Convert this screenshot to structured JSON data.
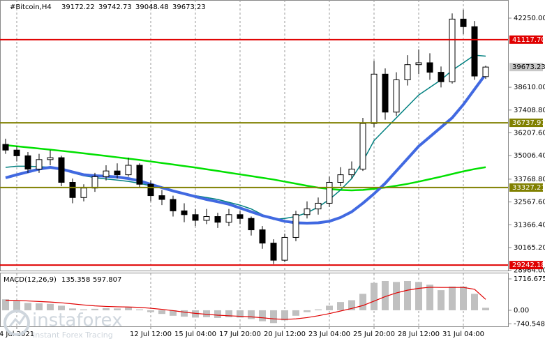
{
  "chart_data": {
    "type": "candlestick",
    "title": "#Bitcoin,H4",
    "categories": [
      null,
      "4 Jul 2021",
      null,
      null,
      null,
      null,
      null,
      null,
      null,
      null,
      null,
      null,
      null,
      "12 Jul 12:00",
      null,
      null,
      null,
      "15 Jul 04:00",
      null,
      null,
      null,
      "17 Jul 20:00",
      null,
      null,
      null,
      "20 Jul 12:00",
      null,
      null,
      null,
      "23 Jul 04:00",
      null,
      null,
      null,
      "25 Jul 20:00",
      null,
      null,
      null,
      "28 Jul 12:00",
      null,
      null,
      null,
      "31 Jul 04:00",
      null,
      null
    ],
    "candles": {
      "open": [
        35600,
        35300,
        35000,
        34300,
        34800,
        34900,
        33600,
        32800,
        33300,
        33900,
        34200,
        34000,
        34500,
        33500,
        32900,
        32700,
        32100,
        31900,
        31600,
        31800,
        31500,
        31900,
        31700,
        31100,
        30400,
        29500,
        30700,
        31900,
        32200,
        32500,
        33600,
        34000,
        34300,
        36700,
        39300,
        37300,
        39000,
        39800,
        39900,
        39400,
        38900,
        42200,
        41800,
        39172.22
      ],
      "high": [
        35900,
        35500,
        35200,
        35100,
        35300,
        35000,
        33800,
        33500,
        34100,
        34500,
        34600,
        34900,
        34600,
        33700,
        33200,
        32900,
        32500,
        32200,
        32200,
        32000,
        32200,
        32100,
        31800,
        31300,
        30600,
        30900,
        32100,
        32600,
        32800,
        33900,
        34400,
        34700,
        37000,
        40000,
        39600,
        39400,
        40300,
        40600,
        40400,
        39700,
        42500,
        42700,
        42100,
        39742.73
      ],
      "low": [
        35100,
        34700,
        34100,
        34100,
        34500,
        33400,
        32500,
        32600,
        33100,
        33700,
        33800,
        33900,
        33300,
        32600,
        32400,
        31800,
        31500,
        31300,
        31400,
        31200,
        31300,
        31400,
        30800,
        30100,
        29300,
        29400,
        30500,
        31700,
        31900,
        32300,
        33400,
        33800,
        34200,
        36500,
        36900,
        37100,
        38700,
        39300,
        39000,
        38600,
        38800,
        41400,
        39000,
        39048.48
      ],
      "close": [
        35300,
        35000,
        34300,
        34800,
        34900,
        33600,
        32800,
        33300,
        33900,
        34200,
        34000,
        34500,
        33500,
        32900,
        32700,
        32100,
        31900,
        31600,
        31800,
        31500,
        31900,
        31700,
        31100,
        30400,
        29500,
        30700,
        31900,
        32200,
        32500,
        33600,
        34000,
        34300,
        36700,
        39300,
        37300,
        39000,
        39800,
        39900,
        39400,
        38900,
        42200,
        41800,
        39200,
        39673.23
      ]
    },
    "up_color": "#ffffff",
    "down_color": "#000000",
    "moving_averages": [
      {
        "color": "#00e000",
        "width": 2.5,
        "values": [
          35560,
          35500,
          35440,
          35380,
          35320,
          35260,
          35200,
          35130,
          35060,
          34990,
          34920,
          34850,
          34780,
          34700,
          34620,
          34540,
          34460,
          34380,
          34290,
          34200,
          34110,
          34020,
          33930,
          33840,
          33750,
          33640,
          33530,
          33420,
          33320,
          33250,
          33200,
          33180,
          33200,
          33260,
          33330,
          33420,
          33520,
          33640,
          33770,
          33900,
          34040,
          34180,
          34300,
          34400
        ]
      },
      {
        "color": "#008080",
        "width": 1.5,
        "values": [
          34390,
          34450,
          34450,
          34420,
          34400,
          34300,
          34100,
          33950,
          33850,
          33780,
          33720,
          33650,
          33550,
          33420,
          33300,
          33150,
          33020,
          32900,
          32800,
          32700,
          32550,
          32400,
          32200,
          31900,
          31650,
          31700,
          31800,
          32000,
          32300,
          32700,
          33200,
          33800,
          34700,
          35800,
          36400,
          37000,
          37600,
          38200,
          38600,
          39000,
          39500,
          39900,
          40300,
          40250
        ]
      },
      {
        "color": "#4169e1",
        "width": 4,
        "values": [
          33840,
          34000,
          34150,
          34300,
          34390,
          34300,
          34150,
          34000,
          33950,
          33920,
          33880,
          33800,
          33680,
          33500,
          33320,
          33150,
          33000,
          32850,
          32700,
          32580,
          32450,
          32250,
          32050,
          31850,
          31700,
          31550,
          31470,
          31450,
          31470,
          31550,
          31750,
          32050,
          32500,
          33000,
          33550,
          34200,
          34850,
          35500,
          36000,
          36500,
          37000,
          37700,
          38500,
          39300
        ]
      }
    ],
    "ylim": [
      28954,
      43205
    ],
    "yticks": [
      {
        "value": 42250,
        "label": "42250.00"
      },
      {
        "value": 38610,
        "label": "38610.00"
      },
      {
        "value": 37408.8,
        "label": "37408.80"
      },
      {
        "value": 36207.6,
        "label": "36207.60"
      },
      {
        "value": 35006.4,
        "label": "35006.40"
      },
      {
        "value": 33768.8,
        "label": "33768.80"
      },
      {
        "value": 32567.6,
        "label": "32567.60"
      },
      {
        "value": 31366.4,
        "label": "31366.40"
      },
      {
        "value": 30165.2,
        "label": "30165.20"
      },
      {
        "value": 28964,
        "label": "28964.00"
      }
    ],
    "levels": [
      {
        "value": 41117.7,
        "label": "41117.70",
        "color": "#e00000"
      },
      {
        "value": 36737.97,
        "label": "36737.97",
        "color": "#808000"
      },
      {
        "value": 33327.21,
        "label": "33327.21",
        "color": "#808000"
      },
      {
        "value": 29242.18,
        "label": "29242.18",
        "color": "#e00000"
      }
    ],
    "grid": "x",
    "macd": {
      "label": "MACD(12,26,9)",
      "hist_color": "#c0c0c0",
      "signal_color": "#e00000",
      "histogram": [
        600,
        500,
        400,
        380,
        350,
        250,
        100,
        50,
        80,
        120,
        100,
        150,
        50,
        -100,
        -200,
        -300,
        -350,
        -400,
        -380,
        -420,
        -380,
        -400,
        -480,
        -600,
        -700,
        -550,
        -300,
        -100,
        50,
        250,
        450,
        550,
        900,
        1500,
        1600,
        1550,
        1600,
        1550,
        1400,
        1100,
        1300,
        1300,
        900,
        135.358
      ],
      "signal": [
        550,
        540,
        510,
        480,
        450,
        410,
        350,
        290,
        240,
        210,
        190,
        180,
        160,
        110,
        50,
        -20,
        -100,
        -170,
        -220,
        -270,
        -300,
        -330,
        -360,
        -410,
        -470,
        -500,
        -470,
        -400,
        -300,
        -180,
        -40,
        100,
        260,
        500,
        750,
        950,
        1100,
        1200,
        1260,
        1250,
        1250,
        1250,
        1150,
        597.807
      ],
      "ylim": [
        -880,
        2020
      ],
      "yticks": [
        1716.675,
        {
          "value": 0,
          "label": "0.00"
        },
        -740.548
      ]
    },
    "watermark": {
      "brand": "instaforex",
      "tagline": "Instant Forex Tracing"
    }
  }
}
